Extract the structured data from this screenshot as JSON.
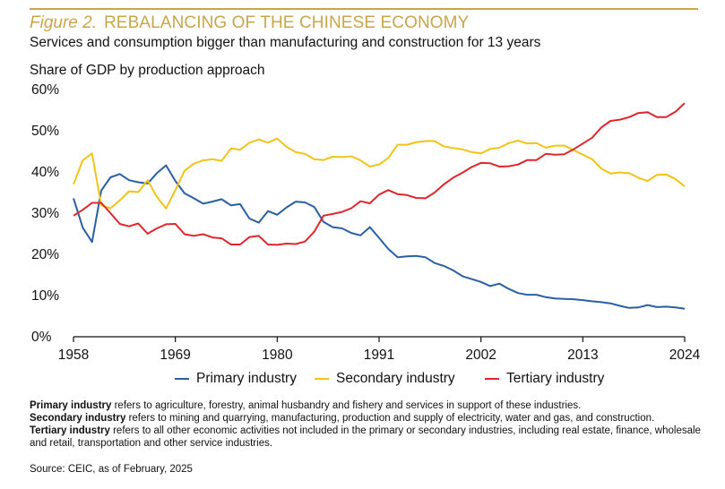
{
  "figure": {
    "label": "Figure 2.",
    "title": "REBALANCING OF THE CHINESE ECONOMY",
    "subtitle": "Services and consumption bigger than manufacturing and construction for 13 years"
  },
  "chart_data": {
    "type": "line",
    "title": "Share of GDP by production approach",
    "xlabel": "",
    "ylabel": "",
    "x_range": [
      1958,
      2024
    ],
    "x_ticks": [
      "1958",
      "1969",
      "1980",
      "1991",
      "2002",
      "2013",
      "2024"
    ],
    "ylim": [
      0,
      60
    ],
    "y_ticks": [
      "0%",
      "10%",
      "20%",
      "30%",
      "40%",
      "50%",
      "60%"
    ],
    "grid": false,
    "legend_position": "bottom",
    "x": [
      1958,
      1959,
      1960,
      1961,
      1962,
      1963,
      1964,
      1965,
      1966,
      1967,
      1968,
      1969,
      1970,
      1971,
      1972,
      1973,
      1974,
      1975,
      1976,
      1977,
      1978,
      1979,
      1980,
      1981,
      1982,
      1983,
      1984,
      1985,
      1986,
      1987,
      1988,
      1989,
      1990,
      1991,
      1992,
      1993,
      1994,
      1995,
      1996,
      1997,
      1998,
      1999,
      2000,
      2001,
      2002,
      2003,
      2004,
      2005,
      2006,
      2007,
      2008,
      2009,
      2010,
      2011,
      2012,
      2013,
      2014,
      2015,
      2016,
      2017,
      2018,
      2019,
      2020,
      2021,
      2022,
      2023,
      2024
    ],
    "series": [
      {
        "name": "Primary industry",
        "color": "#2a5fa5",
        "values": [
          33.6,
          26.5,
          23.0,
          35.5,
          38.7,
          39.5,
          38.0,
          37.5,
          37.2,
          39.7,
          41.6,
          37.8,
          34.8,
          33.6,
          32.3,
          32.8,
          33.4,
          31.9,
          32.2,
          28.7,
          27.7,
          30.5,
          29.6,
          31.4,
          32.8,
          32.6,
          31.5,
          27.9,
          26.6,
          26.3,
          25.2,
          24.6,
          26.6,
          24.0,
          21.3,
          19.3,
          19.5,
          19.6,
          19.3,
          17.9,
          17.2,
          16.1,
          14.7,
          14.0,
          13.3,
          12.3,
          12.9,
          11.6,
          10.6,
          10.2,
          10.2,
          9.6,
          9.3,
          9.2,
          9.1,
          8.9,
          8.6,
          8.4,
          8.1,
          7.5,
          7.0,
          7.1,
          7.7,
          7.2,
          7.3,
          7.1,
          6.8
        ]
      },
      {
        "name": "Secondary industry",
        "color": "#f2c318",
        "values": [
          37.0,
          42.8,
          44.5,
          31.9,
          31.2,
          33.1,
          35.3,
          35.1,
          38.0,
          34.0,
          31.1,
          35.6,
          40.3,
          42.0,
          42.8,
          43.1,
          42.7,
          45.7,
          45.4,
          47.1,
          47.9,
          47.1,
          48.1,
          46.1,
          44.8,
          44.4,
          43.1,
          42.9,
          43.7,
          43.6,
          43.8,
          42.8,
          41.3,
          41.8,
          43.4,
          46.6,
          46.6,
          47.2,
          47.5,
          47.5,
          46.2,
          45.8,
          45.5,
          44.8,
          44.5,
          45.6,
          45.9,
          47.0,
          47.6,
          46.9,
          47.0,
          45.9,
          46.4,
          46.4,
          45.3,
          44.2,
          43.1,
          40.8,
          39.6,
          39.9,
          39.7,
          38.6,
          37.8,
          39.3,
          39.4,
          38.3,
          36.5
        ]
      },
      {
        "name": "Tertiary industry",
        "color": "#e0262c",
        "values": [
          29.4,
          30.8,
          32.5,
          32.5,
          30.0,
          27.4,
          26.8,
          27.5,
          25.0,
          26.3,
          27.3,
          27.4,
          24.9,
          24.5,
          24.9,
          24.1,
          23.9,
          22.4,
          22.4,
          24.2,
          24.5,
          22.4,
          22.3,
          22.6,
          22.5,
          23.1,
          25.5,
          29.4,
          29.8,
          30.3,
          31.2,
          32.9,
          32.4,
          34.5,
          35.6,
          34.6,
          34.4,
          33.7,
          33.6,
          35.0,
          37.0,
          38.6,
          39.8,
          41.2,
          42.2,
          42.1,
          41.3,
          41.4,
          41.8,
          42.9,
          42.9,
          44.4,
          44.2,
          44.3,
          45.5,
          46.9,
          48.3,
          50.8,
          52.4,
          52.7,
          53.3,
          54.3,
          54.5,
          53.3,
          53.3,
          54.6,
          56.7
        ]
      }
    ]
  },
  "notes": [
    {
      "term": "Primary industry",
      "text": " refers to agriculture, forestry, animal husbandry and fishery and services in support of these industries."
    },
    {
      "term": "Secondary industry",
      "text": " refers to mining and quarrying, manufacturing, production and supply of electricity, water and gas, and construction."
    },
    {
      "term": "Tertiary industry",
      "text": " refers to all other economic activities not included in the primary or secondary industries, including real estate, finance, wholesale and retail, transportation and other service industries."
    }
  ],
  "source": "Source: CEIC, as of February, 2025"
}
